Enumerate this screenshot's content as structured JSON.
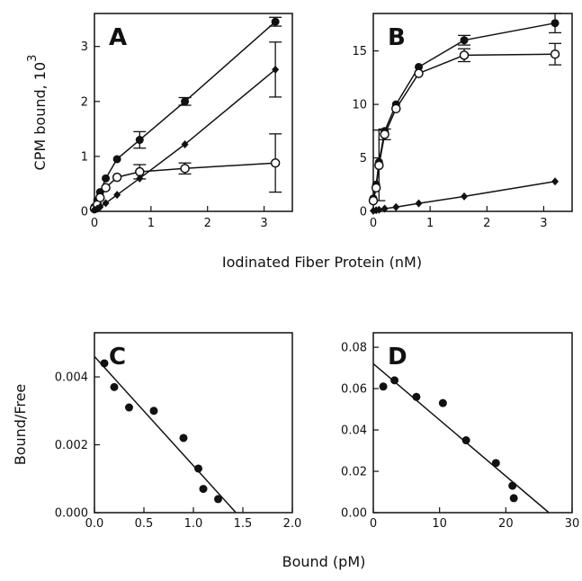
{
  "figure": {
    "shared_xlabel_top": "Iodinated Fiber Protein (nM)",
    "shared_xlabel_bottom": "Bound (pM)",
    "ylabel_top": "CPM bound,  10",
    "ylabel_top_exponent": "3",
    "ylabel_bottom": "Bound/Free"
  },
  "chart_data": [
    {
      "panel": "A",
      "type": "line",
      "xlim": [
        0,
        3.5
      ],
      "ylim": [
        0,
        3.6
      ],
      "xticks": [
        "0",
        "1",
        "2",
        "3"
      ],
      "yticks": [
        "0",
        "1",
        "2",
        "3"
      ],
      "series": [
        {
          "marker": "filled-circle",
          "x": [
            0,
            0.05,
            0.1,
            0.2,
            0.4,
            0.8,
            1.6,
            3.2
          ],
          "y": [
            0.08,
            0.2,
            0.35,
            0.6,
            0.95,
            1.3,
            2.0,
            3.45
          ],
          "err": [
            0,
            0,
            0,
            0,
            0,
            0.15,
            0.07,
            0.08
          ]
        },
        {
          "marker": "open-circle",
          "x": [
            0,
            0.05,
            0.1,
            0.2,
            0.4,
            0.8,
            1.6,
            3.2
          ],
          "y": [
            0.05,
            0.12,
            0.25,
            0.43,
            0.62,
            0.72,
            0.78,
            0.88
          ],
          "err": [
            0,
            0,
            0,
            0,
            0,
            0.13,
            0.1,
            0.53
          ]
        },
        {
          "marker": "filled-diamond",
          "x": [
            0,
            0.05,
            0.1,
            0.2,
            0.4,
            0.8,
            1.6,
            3.2
          ],
          "y": [
            0.03,
            0.05,
            0.08,
            0.15,
            0.3,
            0.6,
            1.22,
            2.58
          ],
          "err": [
            0,
            0,
            0,
            0,
            0,
            0,
            0,
            0.5
          ]
        }
      ]
    },
    {
      "panel": "B",
      "type": "line",
      "xlim": [
        0,
        3.5
      ],
      "ylim": [
        0,
        18.5
      ],
      "xticks": [
        "0",
        "1",
        "2",
        "3"
      ],
      "yticks": [
        "0",
        "5",
        "10",
        "15"
      ],
      "series": [
        {
          "marker": "filled-circle",
          "x": [
            0,
            0.05,
            0.1,
            0.2,
            0.4,
            0.8,
            1.6,
            3.2
          ],
          "y": [
            1.2,
            2.5,
            4.6,
            7.5,
            10.0,
            13.5,
            16.0,
            17.6
          ],
          "err": [
            0,
            0,
            0,
            0,
            0,
            0,
            0.45,
            0.9
          ]
        },
        {
          "marker": "open-circle",
          "x": [
            0,
            0.05,
            0.1,
            0.2,
            0.4,
            0.8,
            1.6,
            3.2
          ],
          "y": [
            1.0,
            2.2,
            4.3,
            7.2,
            9.6,
            12.9,
            14.6,
            14.7
          ],
          "err": [
            0,
            0,
            3.3,
            0.5,
            0,
            0,
            0.6,
            1.0
          ]
        },
        {
          "marker": "filled-diamond",
          "x": [
            0,
            0.05,
            0.1,
            0.2,
            0.4,
            0.8,
            1.6,
            3.2
          ],
          "y": [
            0.05,
            0.1,
            0.15,
            0.25,
            0.4,
            0.75,
            1.4,
            2.8
          ],
          "err": [
            0,
            0,
            0,
            0,
            0,
            0,
            0,
            0
          ]
        }
      ]
    },
    {
      "panel": "C",
      "type": "scatter",
      "xlim": [
        0,
        2.0
      ],
      "ylim": [
        0,
        0.0053
      ],
      "xticks": [
        "0.0",
        "0.5",
        "1.0",
        "1.5",
        "2.0"
      ],
      "yticks": [
        "0.000",
        "0.002",
        "0.004"
      ],
      "points": {
        "x": [
          0.1,
          0.2,
          0.35,
          0.6,
          0.9,
          1.05,
          1.1,
          1.25
        ],
        "y": [
          0.0044,
          0.0037,
          0.0031,
          0.003,
          0.0022,
          0.0013,
          0.0007,
          0.0004
        ]
      },
      "fit_line": {
        "x": [
          0,
          1.43
        ],
        "y": [
          0.0046,
          0
        ]
      }
    },
    {
      "panel": "D",
      "type": "scatter",
      "xlim": [
        0,
        30
      ],
      "ylim": [
        0,
        0.087
      ],
      "xticks": [
        "0",
        "10",
        "20",
        "30"
      ],
      "yticks": [
        "0.00",
        "0.02",
        "0.04",
        "0.06",
        "0.08"
      ],
      "points": {
        "x": [
          1.5,
          3.2,
          6.5,
          10.5,
          14,
          18.5,
          21,
          21.2
        ],
        "y": [
          0.061,
          0.064,
          0.056,
          0.053,
          0.035,
          0.024,
          0.013,
          0.007
        ]
      },
      "fit_line": {
        "x": [
          0,
          26.5
        ],
        "y": [
          0.072,
          0
        ]
      }
    }
  ]
}
